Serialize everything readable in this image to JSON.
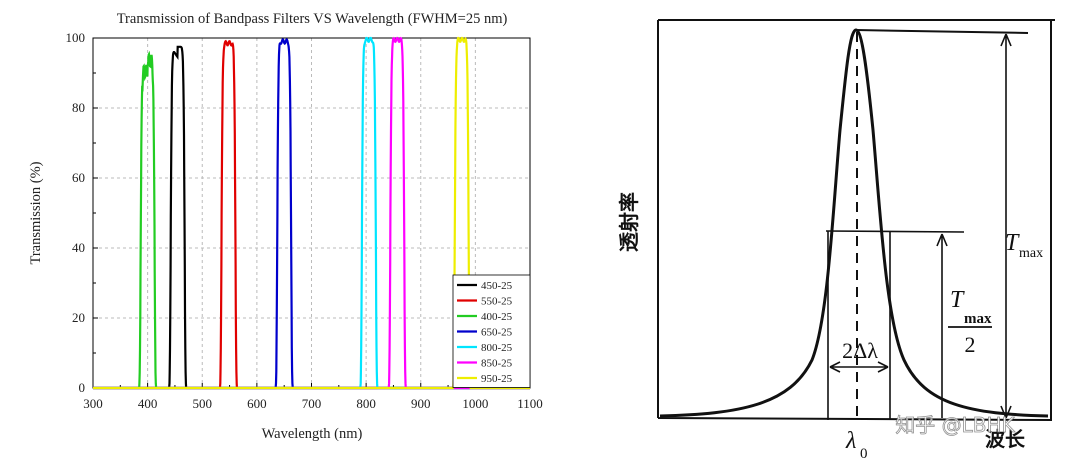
{
  "chart_data": [
    {
      "type": "line",
      "title": "Transmission of Bandpass Filters VS Wavelength (FWHM=25 nm)",
      "xlabel": "Wavelength (nm)",
      "ylabel": "Transmission (%)",
      "xlim": [
        300,
        1100
      ],
      "ylim": [
        0,
        100
      ],
      "xticks": [
        "300",
        "400",
        "500",
        "600",
        "700",
        "800",
        "900",
        "1000",
        "1100"
      ],
      "yticks": [
        "0",
        "20",
        "40",
        "60",
        "80",
        "100"
      ],
      "grid": true,
      "legend_position": "bottom-right",
      "series": [
        {
          "name": "450-25",
          "color": "#000000",
          "center": 455,
          "peak": 97.5,
          "fwhm": 25,
          "ripple": "left-low"
        },
        {
          "name": "550-25",
          "color": "#e00000",
          "center": 548,
          "peak": 98.5,
          "fwhm": 25,
          "ripple": "flat"
        },
        {
          "name": "400-25",
          "color": "#22cc22",
          "center": 400,
          "peak": 93,
          "fwhm": 25,
          "ripple": "jagged"
        },
        {
          "name": "650-25",
          "color": "#0000cc",
          "center": 650,
          "peak": 99,
          "fwhm": 25,
          "ripple": "flat"
        },
        {
          "name": "800-25",
          "color": "#00e5ff",
          "center": 805,
          "peak": 99.5,
          "fwhm": 25,
          "ripple": "flat"
        },
        {
          "name": "850-25",
          "color": "#ff00ff",
          "center": 857,
          "peak": 99.5,
          "fwhm": 25,
          "ripple": "flat"
        },
        {
          "name": "950-25",
          "color": "#eeee00",
          "center": 975,
          "peak": 99.5,
          "fwhm": 25,
          "ripple": "flat"
        }
      ]
    },
    {
      "type": "diagram",
      "ylabel": "透射率",
      "xlabel": "波长",
      "center_label": "λ",
      "center_subscript": "0",
      "width_label": "2Δλ",
      "tmax_label": "T",
      "tmax_subscript": "max",
      "half_numerator": "T",
      "half_numerator_sub": "max",
      "half_denominator": "2",
      "watermark": "知乎 @LBHK"
    }
  ]
}
